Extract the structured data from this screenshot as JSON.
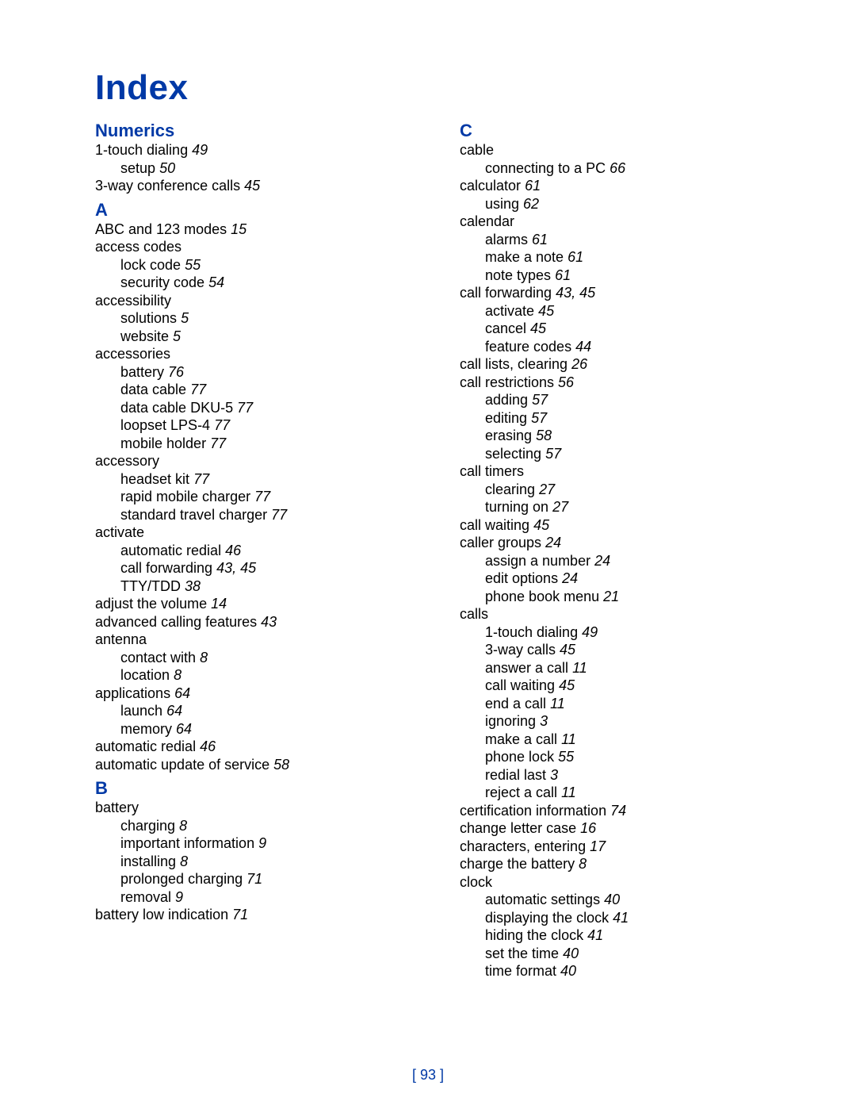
{
  "title": "Index",
  "footer": "[ 93 ]",
  "left": [
    {
      "type": "head",
      "text": "Numerics"
    },
    {
      "type": "entry",
      "lvl": 0,
      "text": "1-touch dialing",
      "page": "49"
    },
    {
      "type": "entry",
      "lvl": 1,
      "text": "setup",
      "page": "50"
    },
    {
      "type": "entry",
      "lvl": 0,
      "text": "3-way conference calls",
      "page": "45"
    },
    {
      "type": "head",
      "text": "A"
    },
    {
      "type": "entry",
      "lvl": 0,
      "text": "ABC and 123 modes",
      "page": "15"
    },
    {
      "type": "entry",
      "lvl": 0,
      "text": "access codes",
      "page": ""
    },
    {
      "type": "entry",
      "lvl": 1,
      "text": "lock code",
      "page": "55"
    },
    {
      "type": "entry",
      "lvl": 1,
      "text": "security code",
      "page": "54"
    },
    {
      "type": "entry",
      "lvl": 0,
      "text": "accessibility",
      "page": ""
    },
    {
      "type": "entry",
      "lvl": 1,
      "text": "solutions",
      "page": "5"
    },
    {
      "type": "entry",
      "lvl": 1,
      "text": "website",
      "page": "5"
    },
    {
      "type": "entry",
      "lvl": 0,
      "text": "accessories",
      "page": ""
    },
    {
      "type": "entry",
      "lvl": 1,
      "text": "battery",
      "page": "76"
    },
    {
      "type": "entry",
      "lvl": 1,
      "text": "data cable",
      "page": "77"
    },
    {
      "type": "entry",
      "lvl": 1,
      "text": "data cable DKU-5",
      "page": "77"
    },
    {
      "type": "entry",
      "lvl": 1,
      "text": "loopset LPS-4",
      "page": "77"
    },
    {
      "type": "entry",
      "lvl": 1,
      "text": "mobile holder",
      "page": "77"
    },
    {
      "type": "entry",
      "lvl": 0,
      "text": "accessory",
      "page": ""
    },
    {
      "type": "entry",
      "lvl": 1,
      "text": "headset kit",
      "page": "77"
    },
    {
      "type": "entry",
      "lvl": 1,
      "text": "rapid mobile charger",
      "page": "77"
    },
    {
      "type": "entry",
      "lvl": 1,
      "text": "standard travel charger",
      "page": "77"
    },
    {
      "type": "entry",
      "lvl": 0,
      "text": "activate",
      "page": ""
    },
    {
      "type": "entry",
      "lvl": 1,
      "text": "automatic redial",
      "page": "46"
    },
    {
      "type": "entry",
      "lvl": 1,
      "text": "call forwarding",
      "page": "43, 45"
    },
    {
      "type": "entry",
      "lvl": 1,
      "text": "TTY/TDD",
      "page": "38"
    },
    {
      "type": "entry",
      "lvl": 0,
      "text": "adjust the volume",
      "page": "14"
    },
    {
      "type": "entry",
      "lvl": 0,
      "text": "advanced calling features",
      "page": "43"
    },
    {
      "type": "entry",
      "lvl": 0,
      "text": "antenna",
      "page": ""
    },
    {
      "type": "entry",
      "lvl": 1,
      "text": "contact with",
      "page": "8"
    },
    {
      "type": "entry",
      "lvl": 1,
      "text": "location",
      "page": "8"
    },
    {
      "type": "entry",
      "lvl": 0,
      "text": "applications",
      "page": "64"
    },
    {
      "type": "entry",
      "lvl": 1,
      "text": "launch",
      "page": "64"
    },
    {
      "type": "entry",
      "lvl": 1,
      "text": "memory",
      "page": "64"
    },
    {
      "type": "entry",
      "lvl": 0,
      "text": "automatic redial",
      "page": "46"
    },
    {
      "type": "entry",
      "lvl": 0,
      "text": "automatic update of service",
      "page": "58"
    },
    {
      "type": "head",
      "text": "B"
    },
    {
      "type": "entry",
      "lvl": 0,
      "text": "battery",
      "page": ""
    },
    {
      "type": "entry",
      "lvl": 1,
      "text": "charging",
      "page": "8"
    },
    {
      "type": "entry",
      "lvl": 1,
      "text": "important information",
      "page": "9"
    },
    {
      "type": "entry",
      "lvl": 1,
      "text": "installing",
      "page": "8"
    },
    {
      "type": "entry",
      "lvl": 1,
      "text": "prolonged charging",
      "page": "71"
    },
    {
      "type": "entry",
      "lvl": 1,
      "text": "removal",
      "page": "9"
    },
    {
      "type": "entry",
      "lvl": 0,
      "text": "battery low indication",
      "page": "71"
    }
  ],
  "right": [
    {
      "type": "head",
      "text": "C"
    },
    {
      "type": "entry",
      "lvl": 0,
      "text": "cable",
      "page": ""
    },
    {
      "type": "entry",
      "lvl": 1,
      "text": "connecting to a PC",
      "page": "66"
    },
    {
      "type": "entry",
      "lvl": 0,
      "text": "calculator",
      "page": "61"
    },
    {
      "type": "entry",
      "lvl": 1,
      "text": "using",
      "page": "62"
    },
    {
      "type": "entry",
      "lvl": 0,
      "text": "calendar",
      "page": ""
    },
    {
      "type": "entry",
      "lvl": 1,
      "text": "alarms",
      "page": "61"
    },
    {
      "type": "entry",
      "lvl": 1,
      "text": "make a note",
      "page": "61"
    },
    {
      "type": "entry",
      "lvl": 1,
      "text": "note types",
      "page": "61"
    },
    {
      "type": "entry",
      "lvl": 0,
      "text": "call forwarding",
      "page": "43, 45"
    },
    {
      "type": "entry",
      "lvl": 1,
      "text": "activate",
      "page": "45"
    },
    {
      "type": "entry",
      "lvl": 1,
      "text": "cancel",
      "page": "45"
    },
    {
      "type": "entry",
      "lvl": 1,
      "text": "feature codes",
      "page": "44"
    },
    {
      "type": "entry",
      "lvl": 0,
      "text": "call lists, clearing",
      "page": "26"
    },
    {
      "type": "entry",
      "lvl": 0,
      "text": "call restrictions",
      "page": "56"
    },
    {
      "type": "entry",
      "lvl": 1,
      "text": "adding",
      "page": "57"
    },
    {
      "type": "entry",
      "lvl": 1,
      "text": "editing",
      "page": "57"
    },
    {
      "type": "entry",
      "lvl": 1,
      "text": "erasing",
      "page": "58"
    },
    {
      "type": "entry",
      "lvl": 1,
      "text": "selecting",
      "page": "57"
    },
    {
      "type": "entry",
      "lvl": 0,
      "text": "call timers",
      "page": ""
    },
    {
      "type": "entry",
      "lvl": 1,
      "text": "clearing",
      "page": "27"
    },
    {
      "type": "entry",
      "lvl": 1,
      "text": "turning on",
      "page": "27"
    },
    {
      "type": "entry",
      "lvl": 0,
      "text": "call waiting",
      "page": "45"
    },
    {
      "type": "entry",
      "lvl": 0,
      "text": "caller groups",
      "page": "24"
    },
    {
      "type": "entry",
      "lvl": 1,
      "text": "assign a number",
      "page": "24"
    },
    {
      "type": "entry",
      "lvl": 1,
      "text": "edit options",
      "page": "24"
    },
    {
      "type": "entry",
      "lvl": 1,
      "text": "phone book menu",
      "page": "21"
    },
    {
      "type": "entry",
      "lvl": 0,
      "text": "calls",
      "page": ""
    },
    {
      "type": "entry",
      "lvl": 1,
      "text": "1-touch dialing",
      "page": "49"
    },
    {
      "type": "entry",
      "lvl": 1,
      "text": "3-way calls",
      "page": "45"
    },
    {
      "type": "entry",
      "lvl": 1,
      "text": "answer a call",
      "page": "11"
    },
    {
      "type": "entry",
      "lvl": 1,
      "text": "call waiting",
      "page": "45"
    },
    {
      "type": "entry",
      "lvl": 1,
      "text": "end a call",
      "page": "11"
    },
    {
      "type": "entry",
      "lvl": 1,
      "text": "ignoring",
      "page": "3"
    },
    {
      "type": "entry",
      "lvl": 1,
      "text": "make a call",
      "page": "11"
    },
    {
      "type": "entry",
      "lvl": 1,
      "text": "phone lock",
      "page": "55"
    },
    {
      "type": "entry",
      "lvl": 1,
      "text": "redial last",
      "page": "3"
    },
    {
      "type": "entry",
      "lvl": 1,
      "text": "reject a call",
      "page": "11"
    },
    {
      "type": "entry",
      "lvl": 0,
      "text": "certification information",
      "page": "74"
    },
    {
      "type": "entry",
      "lvl": 0,
      "text": "change letter case",
      "page": "16"
    },
    {
      "type": "entry",
      "lvl": 0,
      "text": "characters, entering",
      "page": "17"
    },
    {
      "type": "entry",
      "lvl": 0,
      "text": "charge the battery",
      "page": "8"
    },
    {
      "type": "entry",
      "lvl": 0,
      "text": "clock",
      "page": ""
    },
    {
      "type": "entry",
      "lvl": 1,
      "text": "automatic settings",
      "page": "40"
    },
    {
      "type": "entry",
      "lvl": 1,
      "text": "displaying the clock",
      "page": "41"
    },
    {
      "type": "entry",
      "lvl": 1,
      "text": "hiding the clock",
      "page": "41"
    },
    {
      "type": "entry",
      "lvl": 1,
      "text": "set the time",
      "page": "40"
    },
    {
      "type": "entry",
      "lvl": 1,
      "text": "time format",
      "page": "40"
    }
  ]
}
